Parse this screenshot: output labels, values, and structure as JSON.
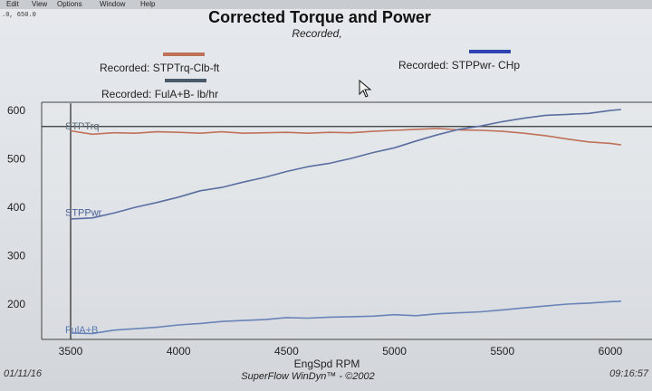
{
  "menu": [
    "Edit",
    "View",
    "Options",
    "Window",
    "Help"
  ],
  "coord_readout": ".0, 650.0",
  "chart_data": {
    "type": "line",
    "title": "Corrected Torque and Power",
    "subtitle": "Recorded,",
    "xlabel": "EngSpd RPM",
    "ylabel": "",
    "xlim": [
      3500,
      6050
    ],
    "ylim": [
      125,
      615
    ],
    "x_ticks": [
      3500,
      4000,
      4500,
      5000,
      5500,
      6000
    ],
    "y_ticks": [
      200,
      300,
      400,
      500,
      600
    ],
    "grid": false,
    "reference_line": 565,
    "legend": [
      {
        "label": "Recorded: STPTrq-Clb-ft",
        "color": "#c0715a"
      },
      {
        "label": "Recorded: STPPwr- CHp",
        "color": "#2f44b0"
      },
      {
        "label": "Recorded: FulA+B- lb/hr",
        "color": "#4a5a68"
      }
    ],
    "series": [
      {
        "name": "STPTrq",
        "color": "#c0715a",
        "x": [
          3500,
          3600,
          3700,
          3800,
          3900,
          4000,
          4100,
          4200,
          4300,
          4400,
          4500,
          4600,
          4700,
          4800,
          4900,
          5000,
          5100,
          5200,
          5300,
          5400,
          5500,
          5600,
          5700,
          5800,
          5900,
          6000,
          6050
        ],
        "y": [
          556,
          549,
          552,
          551,
          554,
          553,
          551,
          554,
          551,
          552,
          553,
          551,
          553,
          552,
          555,
          557,
          559,
          561,
          558,
          557,
          555,
          551,
          546,
          539,
          533,
          530,
          527
        ]
      },
      {
        "name": "STPPwr",
        "color": "#5a6fa0",
        "x": [
          3500,
          3600,
          3700,
          3800,
          3900,
          4000,
          4100,
          4200,
          4300,
          4400,
          4500,
          4600,
          4700,
          4800,
          4900,
          5000,
          5100,
          5200,
          5300,
          5400,
          5500,
          5600,
          5700,
          5800,
          5900,
          6000,
          6050
        ],
        "y": [
          374,
          376,
          386,
          398,
          408,
          419,
          432,
          439,
          450,
          460,
          472,
          482,
          489,
          499,
          511,
          521,
          535,
          548,
          559,
          566,
          575,
          582,
          588,
          590,
          592,
          598,
          600
        ]
      },
      {
        "name": "FulA+B",
        "color": "#6a84b8",
        "x": [
          3500,
          3600,
          3700,
          3800,
          3900,
          4000,
          4100,
          4200,
          4300,
          4400,
          4500,
          4600,
          4700,
          4800,
          4900,
          5000,
          5100,
          5200,
          5300,
          5400,
          5500,
          5600,
          5700,
          5800,
          5900,
          6000,
          6050
        ],
        "y": [
          138,
          137,
          144,
          147,
          150,
          155,
          158,
          162,
          164,
          166,
          170,
          169,
          171,
          172,
          173,
          176,
          174,
          178,
          180,
          182,
          186,
          190,
          194,
          198,
          200,
          203,
          204
        ]
      }
    ],
    "series_labels": [
      {
        "text": "STPTrq",
        "x": 3500,
        "y": 566
      },
      {
        "text": "STPPwr",
        "x": 3500,
        "y": 388
      },
      {
        "text": "FulA+B",
        "x": 3500,
        "y": 146
      }
    ]
  },
  "footer": {
    "date": "01/11/16",
    "credit": "SuperFlow WinDyn™ - ©2002",
    "time": "09:16:57"
  }
}
